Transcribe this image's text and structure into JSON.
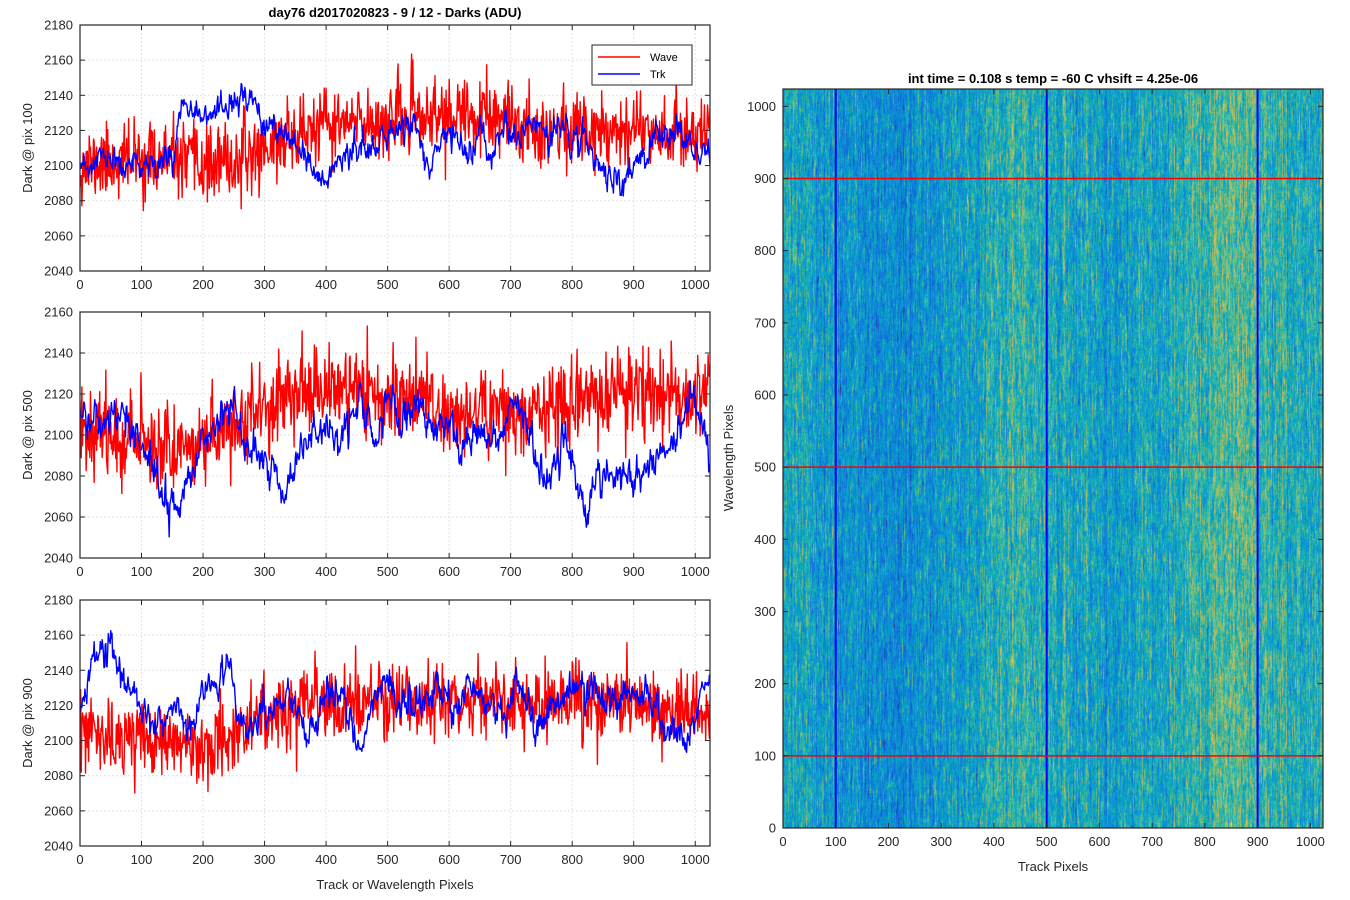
{
  "chart_data": [
    {
      "type": "line",
      "title": "day76 d2017020823 - 9 / 12 - Darks (ADU)",
      "xlabel": "",
      "ylabel": "Dark @ pix 100",
      "xlim": [
        0,
        1024
      ],
      "ylim": [
        2040,
        2180
      ],
      "yticks": [
        2040,
        2060,
        2080,
        2100,
        2120,
        2140,
        2160,
        2180
      ],
      "xticks": [
        0,
        100,
        200,
        300,
        400,
        500,
        600,
        700,
        800,
        900,
        1000
      ],
      "grid": true,
      "legend": "top-right",
      "series": [
        {
          "name": "Wave",
          "color": "#ff0000",
          "x": [
            0,
            50,
            100,
            150,
            200,
            250,
            300,
            350,
            400,
            450,
            500,
            550,
            600,
            650,
            700,
            750,
            800,
            850,
            900,
            950,
            1000,
            1024
          ],
          "y": [
            2100,
            2102,
            2104,
            2103,
            2100,
            2101,
            2110,
            2118,
            2122,
            2124,
            2126,
            2128,
            2128,
            2127,
            2124,
            2122,
            2120,
            2122,
            2122,
            2120,
            2118,
            2122
          ],
          "noise": 13,
          "seed": 11
        },
        {
          "name": "Trk",
          "color": "#0000ff",
          "x": [
            0,
            40,
            70,
            100,
            150,
            170,
            200,
            230,
            250,
            290,
            320,
            340,
            370,
            400,
            430,
            460,
            500,
            540,
            570,
            600,
            630,
            650,
            670,
            690,
            710,
            730,
            760,
            800,
            850,
            880,
            900,
            940,
            970,
            1000,
            1024
          ],
          "y": [
            2095,
            2105,
            2098,
            2100,
            2105,
            2140,
            2130,
            2125,
            2140,
            2130,
            2118,
            2112,
            2100,
            2090,
            2110,
            2108,
            2115,
            2125,
            2100,
            2118,
            2108,
            2115,
            2100,
            2128,
            2112,
            2122,
            2120,
            2118,
            2100,
            2085,
            2100,
            2118,
            2115,
            2110,
            2108
          ],
          "noise": 3.5,
          "seed": 23
        }
      ]
    },
    {
      "type": "line",
      "title": "",
      "xlabel": "",
      "ylabel": "Dark @ pix 500",
      "xlim": [
        0,
        1024
      ],
      "ylim": [
        2040,
        2160
      ],
      "yticks": [
        2040,
        2060,
        2080,
        2100,
        2120,
        2140,
        2160
      ],
      "xticks": [
        0,
        100,
        200,
        300,
        400,
        500,
        600,
        700,
        800,
        900,
        1000
      ],
      "grid": true,
      "series": [
        {
          "name": "Wave",
          "color": "#ff0000",
          "x": [
            0,
            60,
            100,
            150,
            200,
            250,
            300,
            350,
            400,
            450,
            500,
            550,
            600,
            650,
            700,
            750,
            800,
            850,
            900,
            950,
            1000,
            1024
          ],
          "y": [
            2105,
            2100,
            2098,
            2095,
            2095,
            2105,
            2115,
            2120,
            2122,
            2122,
            2120,
            2118,
            2110,
            2112,
            2110,
            2112,
            2118,
            2118,
            2120,
            2120,
            2118,
            2130
          ],
          "noise": 13,
          "seed": 37
        },
        {
          "name": "Trk",
          "color": "#0000ff",
          "x": [
            0,
            30,
            60,
            90,
            120,
            140,
            160,
            180,
            200,
            230,
            250,
            270,
            300,
            330,
            360,
            380,
            400,
            420,
            450,
            480,
            500,
            520,
            550,
            570,
            600,
            620,
            650,
            680,
            700,
            730,
            760,
            790,
            820,
            850,
            880,
            910,
            940,
            970,
            1000,
            1024
          ],
          "y": [
            2115,
            2105,
            2110,
            2105,
            2080,
            2070,
            2068,
            2080,
            2095,
            2110,
            2115,
            2095,
            2085,
            2075,
            2095,
            2100,
            2108,
            2095,
            2115,
            2098,
            2120,
            2105,
            2118,
            2100,
            2108,
            2090,
            2105,
            2095,
            2120,
            2100,
            2075,
            2100,
            2065,
            2085,
            2080,
            2080,
            2090,
            2095,
            2125,
            2085
          ],
          "noise": 4,
          "seed": 41
        }
      ]
    },
    {
      "type": "line",
      "title": "",
      "xlabel": "Track or Wavelength Pixels",
      "ylabel": "Dark @ pix 900",
      "xlim": [
        0,
        1024
      ],
      "ylim": [
        2040,
        2180
      ],
      "yticks": [
        2040,
        2060,
        2080,
        2100,
        2120,
        2140,
        2160,
        2180
      ],
      "xticks": [
        0,
        100,
        200,
        300,
        400,
        500,
        600,
        700,
        800,
        900,
        1000
      ],
      "grid": true,
      "series": [
        {
          "name": "Wave",
          "color": "#ff0000",
          "x": [
            0,
            50,
            100,
            150,
            200,
            250,
            300,
            350,
            400,
            450,
            500,
            550,
            600,
            650,
            700,
            750,
            800,
            850,
            900,
            950,
            1000,
            1024
          ],
          "y": [
            2105,
            2100,
            2100,
            2098,
            2098,
            2105,
            2115,
            2118,
            2120,
            2120,
            2122,
            2122,
            2124,
            2124,
            2118,
            2120,
            2122,
            2122,
            2122,
            2120,
            2118,
            2118
          ],
          "noise": 13,
          "seed": 53
        },
        {
          "name": "Trk",
          "color": "#0000ff",
          "x": [
            0,
            20,
            50,
            80,
            110,
            140,
            160,
            180,
            200,
            220,
            240,
            260,
            280,
            310,
            340,
            370,
            400,
            430,
            460,
            480,
            500,
            520,
            550,
            580,
            610,
            630,
            660,
            690,
            710,
            740,
            770,
            800,
            840,
            870,
            900,
            930,
            960,
            990,
            1010,
            1024
          ],
          "y": [
            2120,
            2145,
            2150,
            2130,
            2115,
            2112,
            2122,
            2100,
            2130,
            2125,
            2155,
            2110,
            2112,
            2115,
            2125,
            2100,
            2130,
            2120,
            2095,
            2125,
            2135,
            2120,
            2120,
            2130,
            2115,
            2140,
            2120,
            2112,
            2135,
            2105,
            2122,
            2130,
            2130,
            2120,
            2125,
            2122,
            2100,
            2100,
            2125,
            2130
          ],
          "noise": 4,
          "seed": 67
        }
      ]
    },
    {
      "type": "heatmap",
      "title": "int time = 0.108 s   temp = -60 C   vhsift = 4.25e-06",
      "xlabel": "Track Pixels",
      "ylabel": "Wavelength Pixels",
      "xlim": [
        0,
        1024
      ],
      "ylim": [
        0,
        1024
      ],
      "xticks": [
        0,
        100,
        200,
        300,
        400,
        500,
        600,
        700,
        800,
        900,
        1000
      ],
      "yticks": [
        0,
        100,
        200,
        300,
        400,
        500,
        600,
        700,
        800,
        900,
        1000
      ],
      "colormap": "parula",
      "column_bias": {
        "x": [
          0,
          100,
          150,
          200,
          300,
          380,
          450,
          500,
          560,
          620,
          700,
          780,
          850,
          900,
          960,
          1024
        ],
        "v": [
          0.48,
          0.42,
          0.38,
          0.36,
          0.4,
          0.48,
          0.56,
          0.52,
          0.46,
          0.44,
          0.47,
          0.53,
          0.6,
          0.56,
          0.52,
          0.5
        ]
      },
      "marker_lines": {
        "vertical": {
          "x": [
            100,
            500,
            900
          ],
          "color": "#0000ff"
        },
        "horizontal": {
          "y": [
            100,
            500,
            900
          ],
          "color": "#ff0000"
        }
      },
      "seed": 91
    }
  ]
}
